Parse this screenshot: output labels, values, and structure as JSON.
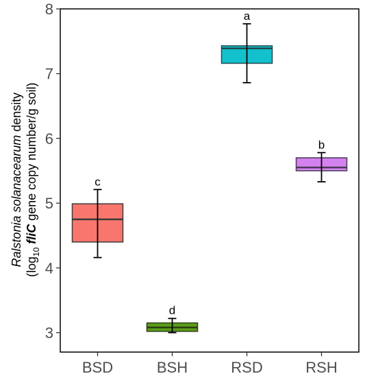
{
  "chart_data": {
    "type": "boxplot",
    "title": "",
    "ylabel_line1_italic": "Ralstonia solanacearum",
    "ylabel_line1_rest": " density",
    "ylabel_line2": {
      "pre": "(log",
      "sub": "10",
      "space": " ",
      "italic": "fliC",
      "post": " gene copy number/g soil)"
    },
    "ylim": [
      2.7,
      8.0
    ],
    "yticks": [
      "3",
      "4",
      "5",
      "6",
      "7",
      "8"
    ],
    "categories": [
      "BSD",
      "BSH",
      "RSD",
      "RSH"
    ],
    "boxes": [
      {
        "name": "BSD",
        "q1": 4.4,
        "median": 4.75,
        "q3": 4.99,
        "whisker_low": 4.16,
        "whisker_high": 5.21,
        "letter": "c",
        "color": "#f8766d",
        "border": "#3a3a3a"
      },
      {
        "name": "BSH",
        "q1": 3.02,
        "median": 3.08,
        "q3": 3.15,
        "whisker_low": 3.0,
        "whisker_high": 3.22,
        "letter": "d",
        "color": "#5a9e1a",
        "border": "#2e3d10"
      },
      {
        "name": "RSD",
        "q1": 7.16,
        "median": 7.39,
        "q3": 7.43,
        "whisker_low": 6.86,
        "whisker_high": 7.77,
        "letter": "a",
        "color": "#13c1cc",
        "border": "#1e4a4e"
      },
      {
        "name": "RSH",
        "q1": 5.5,
        "median": 5.55,
        "q3": 5.7,
        "whisker_low": 5.33,
        "whisker_high": 5.78,
        "letter": "b",
        "color": "#d382f0",
        "border": "#4a3a55"
      }
    ],
    "grid": false,
    "legend": "none"
  }
}
